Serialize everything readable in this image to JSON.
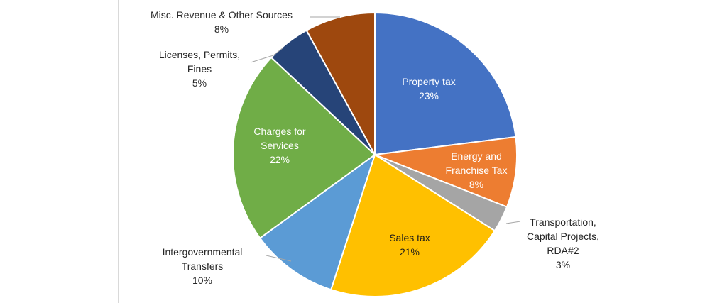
{
  "chart_data": {
    "type": "pie",
    "title": "",
    "slices": [
      {
        "label": "Property tax",
        "label_lines": [
          "Property tax"
        ],
        "pct_label": "23%",
        "value": 23,
        "color": "#4472c4"
      },
      {
        "label": "Energy and Franchise Tax",
        "label_lines": [
          "Energy and",
          "Franchise Tax"
        ],
        "pct_label": "8%",
        "value": 8,
        "color": "#ed7d31"
      },
      {
        "label": "Transportation, Capital Projects, RDA#2",
        "label_lines": [
          "Transportation,",
          "Capital Projects,",
          "RDA#2"
        ],
        "pct_label": "3%",
        "value": 3,
        "color": "#a5a5a5"
      },
      {
        "label": "Sales tax",
        "label_lines": [
          "Sales tax"
        ],
        "pct_label": "21%",
        "value": 21,
        "color": "#ffc000"
      },
      {
        "label": "Intergovernmental Transfers",
        "label_lines": [
          "Intergovernmental",
          "Transfers"
        ],
        "pct_label": "10%",
        "value": 10,
        "color": "#5b9bd5"
      },
      {
        "label": "Charges for Services",
        "label_lines": [
          "Charges for",
          "Services"
        ],
        "pct_label": "22%",
        "value": 22,
        "color": "#70ad47"
      },
      {
        "label": "Licenses, Permits, Fines",
        "label_lines": [
          "Licenses, Permits,",
          "Fines"
        ],
        "pct_label": "5%",
        "value": 5,
        "color": "#264478"
      },
      {
        "label": "Misc. Revenue & Other Sources",
        "label_lines": [
          "Misc. Revenue & Other Sources"
        ],
        "pct_label": "8%",
        "value": 8,
        "color": "#9e480e"
      }
    ]
  }
}
